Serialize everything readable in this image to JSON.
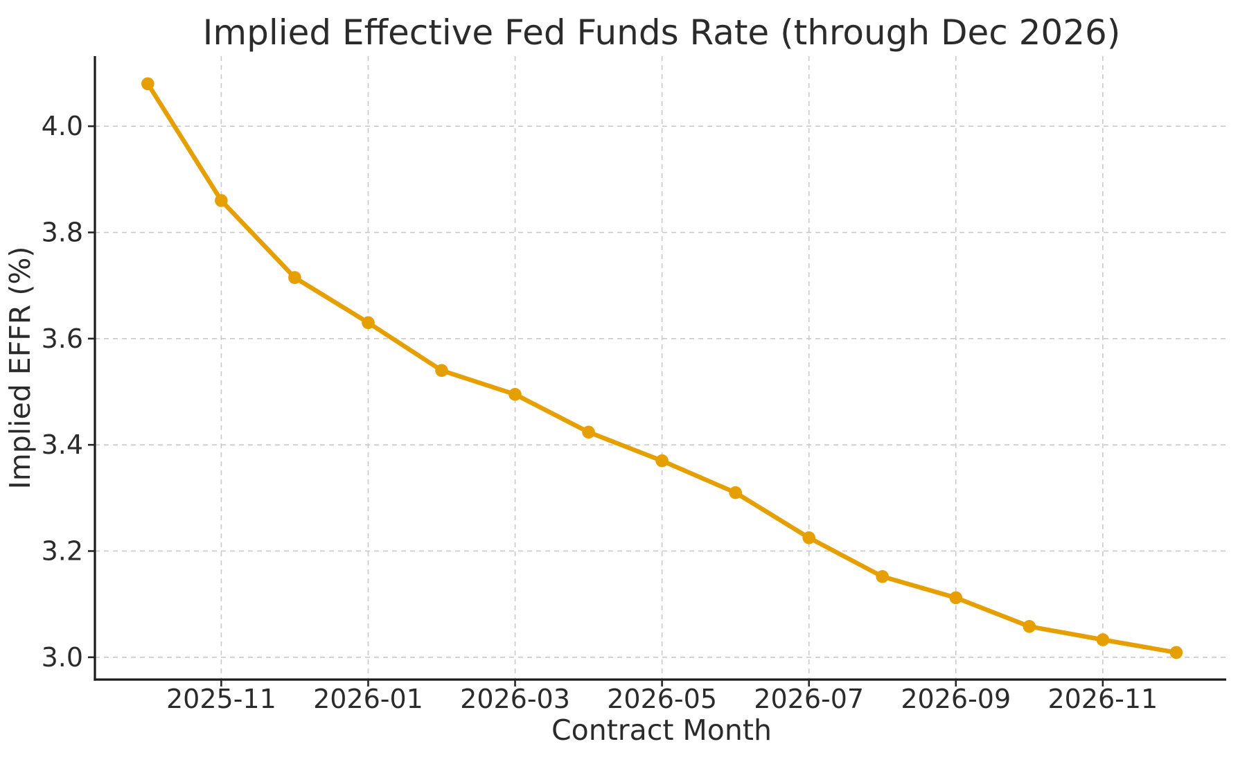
{
  "chart_data": {
    "type": "line",
    "title": "Implied Effective Fed Funds Rate (through Dec 2026)",
    "xlabel": "Contract Month",
    "ylabel": "Implied EFFR (%)",
    "x": [
      "2025-10",
      "2025-11",
      "2025-12",
      "2026-01",
      "2026-02",
      "2026-03",
      "2026-04",
      "2026-05",
      "2026-06",
      "2026-07",
      "2026-08",
      "2026-09",
      "2026-10",
      "2026-11",
      "2026-12"
    ],
    "series": [
      {
        "name": "Implied EFFR",
        "values": [
          4.08,
          3.86,
          3.715,
          3.63,
          3.54,
          3.495,
          3.424,
          3.37,
          3.31,
          3.225,
          3.152,
          3.112,
          3.058,
          3.033,
          3.009
        ]
      }
    ],
    "x_tick_indices": [
      1,
      3,
      5,
      7,
      9,
      11,
      13
    ],
    "x_tick_labels": [
      "2025-11",
      "2026-01",
      "2026-03",
      "2026-05",
      "2026-07",
      "2026-09",
      "2026-11"
    ],
    "y_ticks": [
      3.0,
      3.2,
      3.4,
      3.6,
      3.8,
      4.0
    ],
    "y_tick_labels": [
      "3.0",
      "3.2",
      "3.4",
      "3.6",
      "3.8",
      "4.0"
    ],
    "xlim": [
      -0.72,
      14.68
    ],
    "ylim": [
      2.958,
      4.132
    ],
    "grid": true,
    "grid_style": "dashed",
    "legend": false,
    "marker": "circle"
  },
  "colors": {
    "line": "#E69F00",
    "marker": "#E69F00",
    "grid": "#c9c9c9",
    "spine": "#1a1a1a",
    "tick": "#262626",
    "text": "#2b2b2b",
    "background": "#ffffff"
  }
}
